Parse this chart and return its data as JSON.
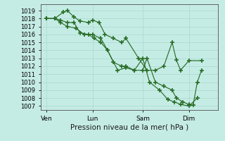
{
  "background_color": "#c5ece4",
  "grid_color": "#a8d8ce",
  "line_color": "#2a6e2a",
  "xlabel": "Pression niveau de la mer( hPa )",
  "ylim": [
    1006.5,
    1019.8
  ],
  "yticks": [
    1007,
    1008,
    1009,
    1010,
    1011,
    1012,
    1013,
    1014,
    1015,
    1016,
    1017,
    1018,
    1019
  ],
  "xtick_positions": [
    0.5,
    6,
    12,
    17.5
  ],
  "xtick_labels": [
    "Ven",
    "Lun",
    "Sam",
    "Dim"
  ],
  "xlim": [
    -0.2,
    21
  ],
  "line1_x": [
    0.5,
    1.5,
    2.5,
    3.0,
    3.8,
    4.5,
    5.5,
    6.0,
    6.8,
    7.5,
    8.5,
    9.5,
    10.0,
    11.5,
    12.5,
    13.5,
    14.5,
    15.5,
    16.0,
    16.5,
    17.5,
    19.0
  ],
  "line1_y": [
    1018.0,
    1018.0,
    1018.8,
    1019.0,
    1018.2,
    1017.7,
    1017.5,
    1017.8,
    1017.5,
    1016.0,
    1015.5,
    1015.0,
    1015.5,
    1013.0,
    1011.5,
    1011.5,
    1012.0,
    1015.0,
    1012.8,
    1011.5,
    1012.7,
    1012.7
  ],
  "line2_x": [
    0.5,
    1.5,
    2.2,
    3.0,
    4.0,
    5.0,
    6.0,
    7.0,
    7.8,
    9.0,
    10.0,
    11.0,
    12.0,
    12.8,
    14.0,
    15.0,
    15.8,
    16.5,
    17.5,
    18.5
  ],
  "line2_y": [
    1018.0,
    1018.0,
    1017.5,
    1017.0,
    1016.8,
    1016.0,
    1016.0,
    1015.5,
    1014.0,
    1011.5,
    1011.8,
    1011.5,
    1013.0,
    1010.0,
    1009.0,
    1007.8,
    1007.5,
    1007.2,
    1007.0,
    1008.0
  ],
  "line3_x": [
    0.5,
    1.5,
    2.2,
    3.0,
    3.8,
    4.5,
    5.5,
    6.2,
    7.0,
    7.8,
    8.5,
    9.5,
    10.0,
    11.0,
    12.0,
    12.5,
    13.5,
    14.5,
    15.5,
    16.0,
    16.8,
    17.5,
    18.0,
    18.5,
    19.0
  ],
  "line3_y": [
    1018.0,
    1018.0,
    1017.8,
    1017.5,
    1017.5,
    1016.2,
    1016.0,
    1015.5,
    1015.0,
    1014.0,
    1012.5,
    1012.0,
    1012.0,
    1011.5,
    1011.5,
    1013.0,
    1010.0,
    1009.5,
    1009.0,
    1008.0,
    1007.5,
    1007.2,
    1007.1,
    1010.0,
    1011.5
  ],
  "figwidth": 3.2,
  "figheight": 2.0,
  "dpi": 100
}
